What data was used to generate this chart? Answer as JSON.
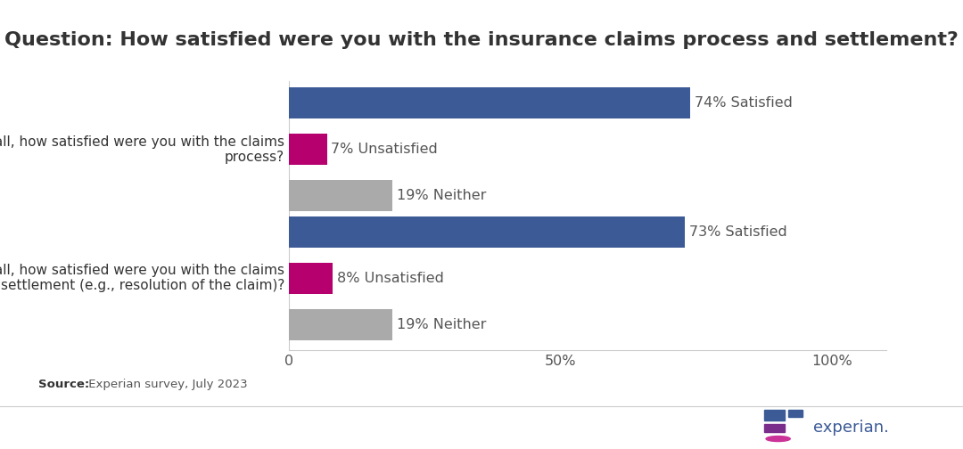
{
  "title": "Question: How satisfied were you with the insurance claims process and settlement?",
  "title_fontsize": 16,
  "title_color": "#333333",
  "background_color": "#ffffff",
  "source_text_bold": "Source:",
  "source_text_regular": " Experian survey, July 2023",
  "questions": [
    "Overall, how satisfied were you with the claims\nprocess?",
    "Overall, how satisfied were you with the claims\nsettlement (e.g., resolution of the claim)?"
  ],
  "categories": [
    "Satisfied",
    "Unsatisfied",
    "Neither"
  ],
  "values": [
    [
      74,
      7,
      19
    ],
    [
      73,
      8,
      19
    ]
  ],
  "colors": {
    "Satisfied": "#3c5a96",
    "Unsatisfied": "#b5006e",
    "Neither": "#aaaaaa"
  },
  "bar_height": 0.18,
  "bar_offsets": [
    0.27,
    0.0,
    -0.27
  ],
  "group_centers": [
    0.75,
    0.0
  ],
  "xlim": [
    0,
    110
  ],
  "xticks": [
    0,
    50,
    100
  ],
  "xticklabels": [
    "0",
    "50%",
    "100%"
  ],
  "label_color": "#555555",
  "label_fontsize": 11.5,
  "tick_fontsize": 11.5,
  "ytick_fontsize": 11,
  "separator_line_color": "#cccccc",
  "logo_colors": {
    "blue_large": "#3c5a96",
    "purple_small": "#8b2a8b",
    "pink": "#cc3399"
  }
}
